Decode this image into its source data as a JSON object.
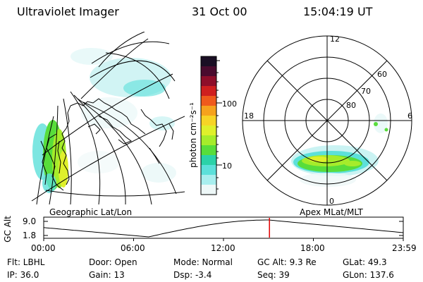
{
  "header": {
    "instrument": "Ultraviolet Imager",
    "date": "31 Oct 00",
    "time": "15:04:19 UT"
  },
  "colorbar": {
    "label": "photon cm⁻²s⁻¹",
    "ticks": [
      "100",
      "10"
    ],
    "colors": [
      "#1a0f24",
      "#4a0b2e",
      "#8e0e2a",
      "#cf1f1f",
      "#ef5a1c",
      "#f6a21d",
      "#f7d426",
      "#dff02b",
      "#a6ec2b",
      "#58dd3b",
      "#2bd2a8",
      "#5ce0da",
      "#a8eeee",
      "#eef8f8"
    ]
  },
  "map_left": {
    "label": "Geographic Lat/Lon"
  },
  "map_right": {
    "label": "Apex MLat/MLT",
    "mlt_labels": [
      "12",
      "18",
      "6",
      "0"
    ],
    "lat_labels": [
      "60",
      "70",
      "80"
    ]
  },
  "altitude_plot": {
    "ylabel": "GC Alt",
    "yticks": [
      "9.0",
      "1.8"
    ],
    "xticks": [
      "00:00",
      "06:00",
      "12:00",
      "18:00",
      "23:59"
    ],
    "marker_time_hours": 15.07,
    "marker_color": "#e00000"
  },
  "params": {
    "flt": "Flt: LBHL",
    "ip": "IP: 36.0",
    "door": "Door: Open",
    "gain": "Gain: 13",
    "mode": "Mode: Normal",
    "dsp": "Dsp:    -3.4",
    "gc_alt": "GC Alt: 9.3 Re",
    "seq": "Seq: 39",
    "glat": "GLat:   49.3",
    "glon": "GLon: 137.6"
  }
}
